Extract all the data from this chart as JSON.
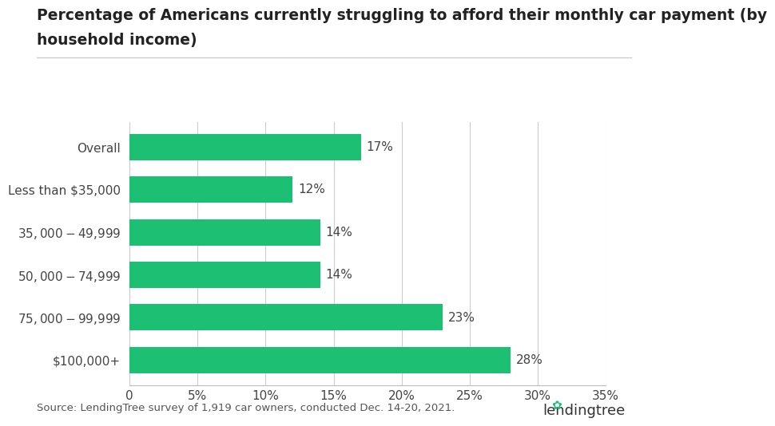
{
  "title_line1": "Percentage of Americans currently struggling to afford their monthly car payment (by",
  "title_line2": "household income)",
  "categories": [
    "Overall",
    "Less than $35,000",
    "$35,000-$49,999",
    "$50,000-$74,999",
    "$75,000-$99,999",
    "$100,000+"
  ],
  "values": [
    17,
    12,
    14,
    14,
    23,
    28
  ],
  "bar_color": "#1dbf73",
  "label_color": "#444444",
  "background_color": "#ffffff",
  "xlim": [
    0,
    35
  ],
  "xticks": [
    0,
    5,
    10,
    15,
    20,
    25,
    30,
    35
  ],
  "xtick_labels": [
    "0",
    "5%",
    "10%",
    "15%",
    "20%",
    "25%",
    "30%",
    "35%"
  ],
  "source_text": "Source: LendingTree survey of 1,919 car owners, conducted Dec. 14-20, 2021.",
  "title_fontsize": 13.5,
  "tick_fontsize": 11,
  "label_fontsize": 11,
  "source_fontsize": 9.5,
  "bar_height": 0.62,
  "grid_color": "#cccccc",
  "title_color": "#222222",
  "source_color": "#555555",
  "logo_text": "lendingtree",
  "logo_color": "#333333",
  "logo_green": "#1dbf73"
}
